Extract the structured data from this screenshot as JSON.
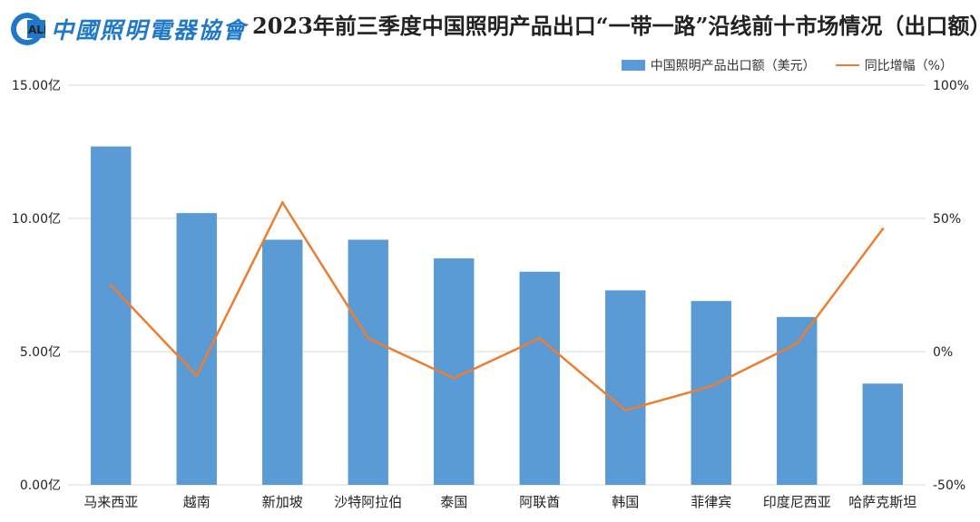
{
  "logo": {
    "mark_text": "CALI",
    "name": "中國照明電器協會"
  },
  "title": "2023年前三季度中国照明产品出口“一带一路”沿线前十市场情况（出口额）",
  "colors": {
    "bar": "#5b9bd5",
    "line": "#ed7d31",
    "brand": "#1f78c8",
    "grid": "#d9d9d9"
  },
  "chart_data": {
    "type": "bar",
    "categories": [
      "马来西亚",
      "越南",
      "新加坡",
      "沙特阿拉伯",
      "泰国",
      "阿联酋",
      "韩国",
      "菲律宾",
      "印度尼西亚",
      "哈萨克斯坦"
    ],
    "series": [
      {
        "name": "中国照明产品出口额（美元）",
        "type": "bar",
        "axis": "left",
        "values": [
          12.7,
          10.2,
          9.2,
          9.2,
          8.5,
          8.0,
          7.3,
          6.9,
          6.3,
          3.8
        ]
      },
      {
        "name": "同比增幅（%）",
        "type": "line",
        "axis": "right",
        "values": [
          25,
          -9,
          56,
          5,
          -10,
          5,
          -22,
          -13,
          3,
          46
        ]
      }
    ],
    "left_axis": {
      "ylim": [
        0,
        15
      ],
      "ticks": [
        0,
        5,
        10,
        15
      ],
      "tick_labels": [
        "0.00亿",
        "5.00亿",
        "10.00亿",
        "15.00亿"
      ]
    },
    "right_axis": {
      "ylim": [
        -50,
        100
      ],
      "ticks": [
        -50,
        0,
        50,
        100
      ],
      "tick_labels": [
        "-50%",
        "0%",
        "50%",
        "100%"
      ]
    },
    "grid": true,
    "legend_position": "top-right"
  }
}
